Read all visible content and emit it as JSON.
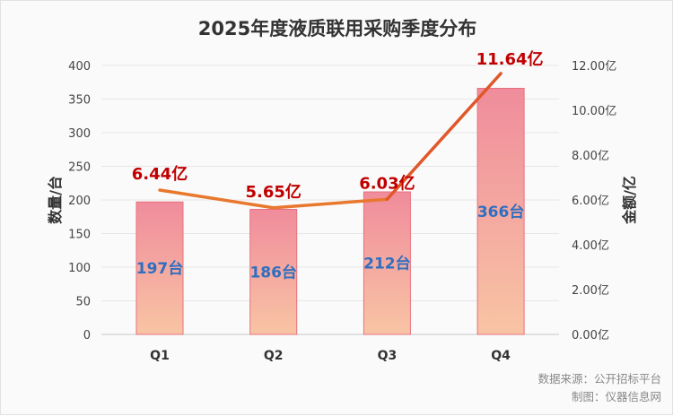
{
  "chart_data": {
    "type": "bar+line",
    "title": "2025年度液质联用采购季度分布",
    "categories": [
      "Q1",
      "Q2",
      "Q3",
      "Q4"
    ],
    "series": [
      {
        "name": "数量/台",
        "type": "bar",
        "axis": "left",
        "values": [
          197,
          186,
          212,
          366
        ],
        "labels": [
          "197台",
          "186台",
          "212台",
          "366台"
        ],
        "color": "#f0909c"
      },
      {
        "name": "金额/亿",
        "type": "line",
        "axis": "right",
        "values": [
          6.44,
          5.65,
          6.03,
          11.64
        ],
        "labels": [
          "6.44亿",
          "5.65亿",
          "6.03亿",
          "11.64亿"
        ],
        "color": "#e8782e"
      }
    ],
    "ylabel": "数量/台",
    "ylim": [
      0,
      400
    ],
    "yticks": [
      "0",
      "50",
      "100",
      "150",
      "200",
      "250",
      "300",
      "350",
      "400"
    ],
    "y2label": "金额/亿",
    "y2lim": [
      0,
      12
    ],
    "y2ticks": [
      "0.00亿",
      "2.00亿",
      "4.00亿",
      "6.00亿",
      "8.00亿",
      "10.00亿",
      "12.00亿"
    ],
    "grid": true
  },
  "footer": {
    "source": "数据来源：公开招标平台",
    "maker": "制图：仪器信息网"
  }
}
